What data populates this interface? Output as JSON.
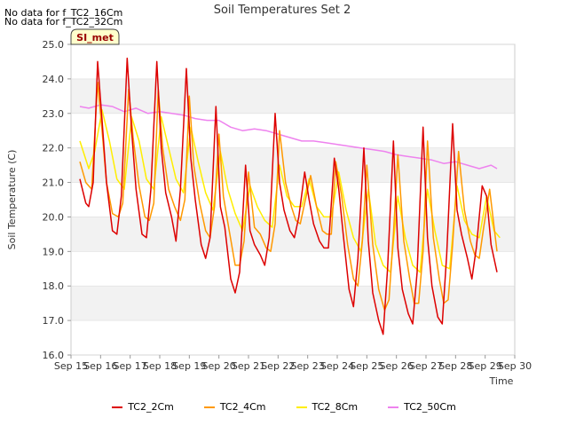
{
  "notes": [
    "No data for f_TC2_16Cm",
    "No data for f_TC2_32Cm"
  ],
  "badge": "SI_met",
  "chart_data": {
    "type": "line",
    "title": "Soil Temperatures Set 2",
    "xlabel": "Time",
    "ylabel": "Soil Temperature (C)",
    "xlim": [
      15,
      30
    ],
    "ylim": [
      16.0,
      25.0
    ],
    "x_ticks": [
      "Sep 15",
      "Sep 16",
      "Sep 17",
      "Sep 18",
      "Sep 19",
      "Sep 20",
      "Sep 21",
      "Sep 22",
      "Sep 23",
      "Sep 24",
      "Sep 25",
      "Sep 26",
      "Sep 27",
      "Sep 28",
      "Sep 29",
      "Sep 30"
    ],
    "y_ticks": [
      "16.0",
      "17.0",
      "18.0",
      "19.0",
      "20.0",
      "21.0",
      "22.0",
      "23.0",
      "24.0",
      "25.0"
    ],
    "grid": "horizontal bands",
    "legend_position": "bottom",
    "series": [
      {
        "name": "TC2_2Cm",
        "color": "#dd0000",
        "x": [
          15.3,
          15.5,
          15.6,
          15.75,
          15.9,
          16.05,
          16.2,
          16.4,
          16.55,
          16.7,
          16.9,
          17.05,
          17.2,
          17.4,
          17.55,
          17.7,
          17.9,
          18.05,
          18.2,
          18.4,
          18.55,
          18.7,
          18.9,
          19.05,
          19.2,
          19.4,
          19.55,
          19.7,
          19.9,
          20.05,
          20.2,
          20.4,
          20.55,
          20.7,
          20.9,
          21.05,
          21.2,
          21.4,
          21.55,
          21.7,
          21.9,
          22.05,
          22.2,
          22.4,
          22.55,
          22.7,
          22.9,
          23.05,
          23.2,
          23.4,
          23.55,
          23.7,
          23.9,
          24.05,
          24.2,
          24.4,
          24.55,
          24.7,
          24.9,
          25.05,
          25.2,
          25.4,
          25.55,
          25.7,
          25.9,
          26.05,
          26.2,
          26.4,
          26.55,
          26.7,
          26.9,
          27.05,
          27.2,
          27.4,
          27.55,
          27.7,
          27.9,
          28.05,
          28.2,
          28.4,
          28.55,
          28.7,
          28.9,
          29.05,
          29.2,
          29.4
        ],
        "y": [
          21.1,
          20.4,
          20.3,
          21.0,
          24.5,
          22.8,
          21.0,
          19.6,
          19.5,
          20.6,
          24.6,
          22.5,
          20.8,
          19.5,
          19.4,
          20.8,
          24.5,
          22.0,
          20.7,
          20.0,
          19.3,
          20.8,
          24.3,
          21.7,
          20.5,
          19.2,
          18.8,
          19.4,
          23.2,
          20.3,
          19.7,
          18.2,
          17.8,
          18.4,
          21.5,
          19.6,
          19.2,
          18.9,
          18.6,
          19.4,
          23.0,
          21.0,
          20.2,
          19.6,
          19.4,
          20.0,
          21.3,
          20.5,
          19.8,
          19.3,
          19.1,
          19.1,
          21.7,
          20.8,
          19.5,
          17.9,
          17.4,
          18.8,
          22.0,
          19.3,
          17.8,
          17.0,
          16.6,
          18.5,
          22.2,
          19.1,
          17.9,
          17.2,
          16.9,
          18.4,
          22.6,
          19.4,
          18.0,
          17.1,
          16.9,
          18.9,
          22.7,
          20.2,
          19.5,
          18.8,
          18.2,
          19.1,
          20.9,
          20.6,
          19.2,
          18.4
        ]
      },
      {
        "name": "TC2_4Cm",
        "color": "#ff9900",
        "x": [
          15.3,
          15.5,
          15.7,
          15.9,
          16.05,
          16.2,
          16.4,
          16.6,
          16.75,
          16.95,
          17.1,
          17.3,
          17.5,
          17.65,
          17.8,
          17.95,
          18.1,
          18.3,
          18.5,
          18.7,
          18.85,
          19.0,
          19.15,
          19.35,
          19.55,
          19.7,
          19.85,
          20.0,
          20.15,
          20.35,
          20.55,
          20.7,
          20.85,
          21.0,
          21.2,
          21.4,
          21.6,
          21.75,
          21.9,
          22.05,
          22.25,
          22.45,
          22.6,
          22.75,
          22.9,
          23.1,
          23.3,
          23.5,
          23.65,
          23.8,
          23.95,
          24.15,
          24.35,
          24.55,
          24.7,
          24.85,
          25.0,
          25.2,
          25.4,
          25.6,
          25.75,
          25.9,
          26.05,
          26.25,
          26.45,
          26.6,
          26.75,
          26.9,
          27.05,
          27.25,
          27.45,
          27.6,
          27.75,
          27.9,
          28.1,
          28.3,
          28.5,
          28.65,
          28.8,
          28.95,
          29.15,
          29.4
        ],
        "y": [
          21.6,
          21.0,
          20.8,
          23.9,
          22.5,
          21.0,
          20.1,
          20.0,
          20.4,
          23.7,
          22.3,
          20.9,
          20.0,
          19.9,
          20.4,
          23.7,
          22.0,
          20.8,
          20.3,
          19.9,
          20.5,
          23.5,
          21.5,
          20.4,
          19.6,
          19.4,
          20.3,
          22.4,
          20.6,
          19.6,
          18.6,
          18.6,
          19.3,
          21.3,
          19.7,
          19.5,
          19.1,
          19.0,
          19.8,
          22.5,
          21.0,
          20.3,
          19.9,
          19.8,
          20.4,
          21.2,
          20.3,
          19.6,
          19.5,
          19.5,
          21.6,
          20.6,
          19.2,
          18.2,
          18.0,
          19.3,
          21.5,
          19.2,
          17.9,
          17.3,
          17.6,
          19.5,
          21.8,
          19.3,
          18.2,
          17.5,
          17.5,
          19.0,
          22.2,
          19.4,
          18.2,
          17.5,
          17.6,
          19.2,
          21.9,
          20.2,
          19.3,
          18.9,
          18.8,
          19.7,
          20.8,
          19.0
        ]
      },
      {
        "name": "TC2_8Cm",
        "color": "#ffee00",
        "x": [
          15.3,
          15.6,
          15.8,
          16.05,
          16.3,
          16.55,
          16.8,
          17.05,
          17.3,
          17.55,
          17.8,
          18.05,
          18.3,
          18.55,
          18.8,
          19.05,
          19.3,
          19.55,
          19.8,
          20.05,
          20.3,
          20.55,
          20.8,
          21.05,
          21.3,
          21.55,
          21.8,
          22.05,
          22.3,
          22.55,
          22.8,
          23.05,
          23.3,
          23.55,
          23.8,
          24.05,
          24.3,
          24.55,
          24.8,
          25.05,
          25.3,
          25.55,
          25.8,
          26.05,
          26.3,
          26.55,
          26.8,
          27.05,
          27.3,
          27.55,
          27.8,
          28.05,
          28.3,
          28.55,
          28.8,
          29.05,
          29.3,
          29.5
        ],
        "y": [
          22.2,
          21.4,
          21.9,
          23.1,
          22.2,
          21.1,
          20.8,
          22.9,
          22.2,
          21.1,
          20.8,
          22.9,
          22.0,
          21.1,
          20.7,
          22.6,
          21.6,
          20.7,
          20.2,
          21.9,
          20.8,
          20.1,
          19.6,
          20.9,
          20.3,
          19.9,
          19.7,
          21.5,
          20.6,
          20.3,
          20.3,
          21.1,
          20.3,
          20.0,
          20.0,
          21.3,
          20.2,
          19.4,
          19.0,
          20.8,
          19.2,
          18.6,
          18.4,
          20.6,
          19.4,
          18.6,
          18.4,
          20.8,
          19.6,
          18.6,
          18.5,
          20.9,
          19.9,
          19.5,
          19.4,
          20.6,
          19.6,
          19.4
        ]
      },
      {
        "name": "TC2_50Cm",
        "color": "#ee82ee",
        "x": [
          15.3,
          15.6,
          16.0,
          16.4,
          16.8,
          17.2,
          17.6,
          18.0,
          18.4,
          18.8,
          19.2,
          19.6,
          20.0,
          20.4,
          20.8,
          21.2,
          21.6,
          22.0,
          22.4,
          22.8,
          23.2,
          23.6,
          24.0,
          24.4,
          24.8,
          25.2,
          25.6,
          26.0,
          26.4,
          26.8,
          27.2,
          27.6,
          28.0,
          28.4,
          28.8,
          29.2,
          29.4
        ],
        "y": [
          23.2,
          23.15,
          23.25,
          23.2,
          23.05,
          23.15,
          23.0,
          23.05,
          23.0,
          22.95,
          22.85,
          22.8,
          22.8,
          22.6,
          22.5,
          22.55,
          22.5,
          22.4,
          22.3,
          22.2,
          22.2,
          22.15,
          22.1,
          22.05,
          22.0,
          21.95,
          21.9,
          21.8,
          21.75,
          21.7,
          21.65,
          21.55,
          21.6,
          21.5,
          21.4,
          21.5,
          21.4
        ]
      }
    ]
  }
}
